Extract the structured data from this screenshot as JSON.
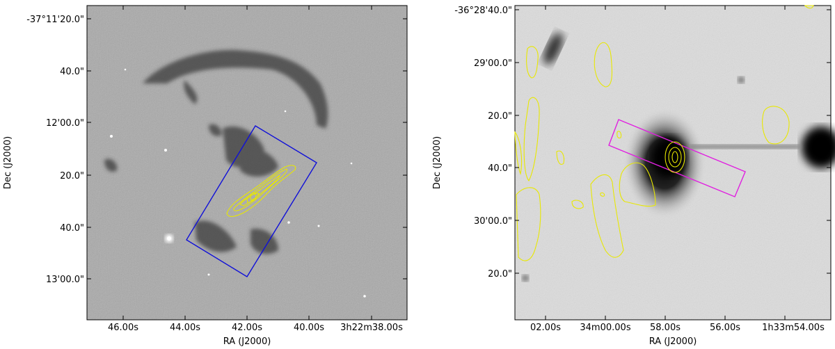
{
  "panels": [
    {
      "id": "left",
      "xlabel": "RA (J2000)",
      "ylabel": "Dec (J2000)",
      "yticks": [
        "-37°11'20.0\"",
        "40.0\"",
        "12'00.0\"",
        "20.0\"",
        "40.0\"",
        "13'00.0\""
      ],
      "xticks": [
        "46.00s",
        "44.00s",
        "42.00s",
        "40.00s",
        "3h22m38.00s"
      ],
      "box_color": "#1010d8",
      "contour_color": "#e8e800"
    },
    {
      "id": "right",
      "xlabel": "RA (J2000)",
      "ylabel": "Dec (J2000)",
      "yticks": [
        "-36°28'40.0\"",
        "29'00.0\"",
        "20.0\"",
        "40.0\"",
        "30'00.0\"",
        "20.0\""
      ],
      "xticks": [
        "02.00s",
        "34m00.00s",
        "58.00s",
        "56.00s",
        "1h33m54.00s"
      ],
      "box_color": "#e020e0",
      "contour_color": "#e8e800"
    }
  ]
}
